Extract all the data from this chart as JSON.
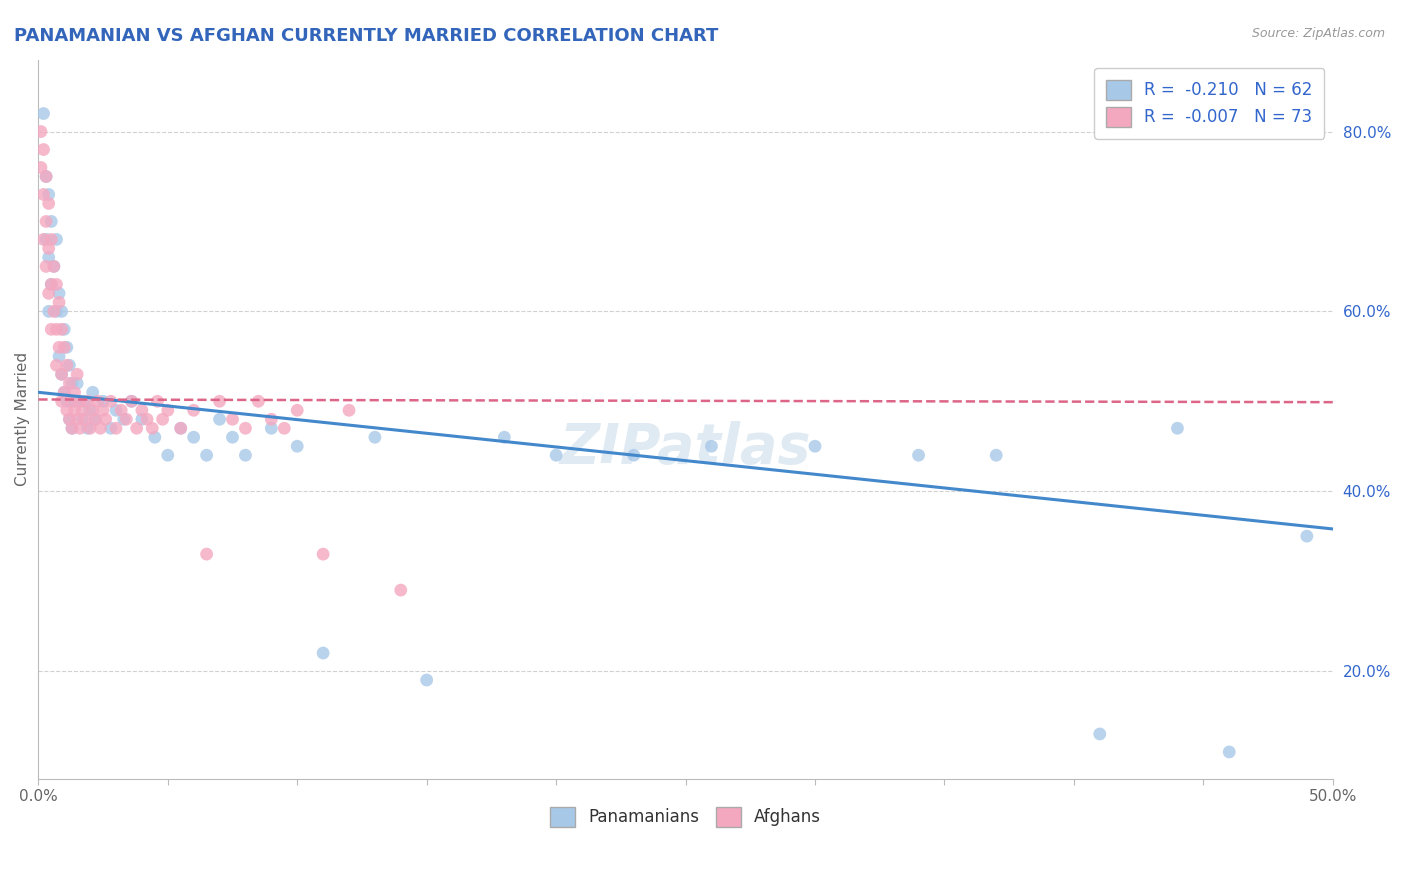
{
  "title": "PANAMANIAN VS AFGHAN CURRENTLY MARRIED CORRELATION CHART",
  "source_text": "Source: ZipAtlas.com",
  "ylabel": "Currently Married",
  "xlim": [
    0.0,
    0.5
  ],
  "ylim": [
    0.08,
    0.88
  ],
  "xticks": [
    0.0,
    0.05,
    0.1,
    0.15,
    0.2,
    0.25,
    0.3,
    0.35,
    0.4,
    0.45,
    0.5
  ],
  "xticklabels": [
    "0.0%",
    "",
    "",
    "",
    "",
    "",
    "",
    "",
    "",
    "",
    "50.0%"
  ],
  "yticks": [
    0.2,
    0.4,
    0.6,
    0.8
  ],
  "yticklabels": [
    "20.0%",
    "40.0%",
    "60.0%",
    "80.0%"
  ],
  "legend1_label": "R =  -0.210   N = 62",
  "legend2_label": "R =  -0.007   N = 73",
  "legend_footer1": "Panamanians",
  "legend_footer2": "Afghans",
  "blue_color": "#a8c8e8",
  "pink_color": "#f4a8c0",
  "blue_line_color": "#4488cc",
  "pink_line_color": "#dd6688",
  "R_color": "#3366cc",
  "grid_color": "#cccccc",
  "background_color": "#ffffff",
  "panamanian_x": [
    0.002,
    0.003,
    0.003,
    0.004,
    0.004,
    0.004,
    0.005,
    0.005,
    0.006,
    0.007,
    0.007,
    0.008,
    0.008,
    0.009,
    0.009,
    0.01,
    0.01,
    0.011,
    0.011,
    0.012,
    0.012,
    0.013,
    0.013,
    0.014,
    0.015,
    0.016,
    0.017,
    0.018,
    0.019,
    0.02,
    0.021,
    0.022,
    0.025,
    0.028,
    0.03,
    0.033,
    0.036,
    0.04,
    0.045,
    0.05,
    0.055,
    0.06,
    0.065,
    0.07,
    0.075,
    0.08,
    0.09,
    0.1,
    0.11,
    0.13,
    0.15,
    0.18,
    0.2,
    0.23,
    0.26,
    0.3,
    0.34,
    0.37,
    0.41,
    0.44,
    0.46,
    0.49
  ],
  "panamanian_y": [
    0.82,
    0.75,
    0.68,
    0.73,
    0.66,
    0.6,
    0.7,
    0.63,
    0.65,
    0.68,
    0.6,
    0.62,
    0.55,
    0.6,
    0.53,
    0.58,
    0.51,
    0.56,
    0.5,
    0.54,
    0.48,
    0.52,
    0.47,
    0.5,
    0.52,
    0.5,
    0.48,
    0.5,
    0.47,
    0.49,
    0.51,
    0.48,
    0.5,
    0.47,
    0.49,
    0.48,
    0.5,
    0.48,
    0.46,
    0.44,
    0.47,
    0.46,
    0.44,
    0.48,
    0.46,
    0.44,
    0.47,
    0.45,
    0.22,
    0.46,
    0.19,
    0.46,
    0.44,
    0.44,
    0.45,
    0.45,
    0.44,
    0.44,
    0.13,
    0.47,
    0.11,
    0.35
  ],
  "afghan_x": [
    0.001,
    0.001,
    0.002,
    0.002,
    0.002,
    0.003,
    0.003,
    0.003,
    0.004,
    0.004,
    0.004,
    0.005,
    0.005,
    0.005,
    0.006,
    0.006,
    0.007,
    0.007,
    0.007,
    0.008,
    0.008,
    0.009,
    0.009,
    0.009,
    0.01,
    0.01,
    0.011,
    0.011,
    0.012,
    0.012,
    0.013,
    0.013,
    0.014,
    0.014,
    0.015,
    0.015,
    0.016,
    0.016,
    0.017,
    0.018,
    0.019,
    0.02,
    0.021,
    0.022,
    0.023,
    0.024,
    0.025,
    0.026,
    0.028,
    0.03,
    0.032,
    0.034,
    0.036,
    0.038,
    0.04,
    0.042,
    0.044,
    0.046,
    0.048,
    0.05,
    0.055,
    0.06,
    0.065,
    0.07,
    0.075,
    0.08,
    0.085,
    0.09,
    0.095,
    0.1,
    0.11,
    0.12,
    0.14
  ],
  "afghan_y": [
    0.8,
    0.76,
    0.78,
    0.73,
    0.68,
    0.75,
    0.7,
    0.65,
    0.72,
    0.67,
    0.62,
    0.68,
    0.63,
    0.58,
    0.65,
    0.6,
    0.63,
    0.58,
    0.54,
    0.61,
    0.56,
    0.58,
    0.53,
    0.5,
    0.56,
    0.51,
    0.54,
    0.49,
    0.52,
    0.48,
    0.5,
    0.47,
    0.49,
    0.51,
    0.48,
    0.53,
    0.47,
    0.5,
    0.49,
    0.48,
    0.5,
    0.47,
    0.49,
    0.48,
    0.5,
    0.47,
    0.49,
    0.48,
    0.5,
    0.47,
    0.49,
    0.48,
    0.5,
    0.47,
    0.49,
    0.48,
    0.47,
    0.5,
    0.48,
    0.49,
    0.47,
    0.49,
    0.33,
    0.5,
    0.48,
    0.47,
    0.5,
    0.48,
    0.47,
    0.49,
    0.33,
    0.49,
    0.29
  ],
  "pan_trend_x": [
    0.0,
    0.5
  ],
  "pan_trend_y": [
    0.51,
    0.358
  ],
  "afg_trend_x": [
    0.0,
    0.5
  ],
  "afg_trend_y": [
    0.502,
    0.499
  ]
}
